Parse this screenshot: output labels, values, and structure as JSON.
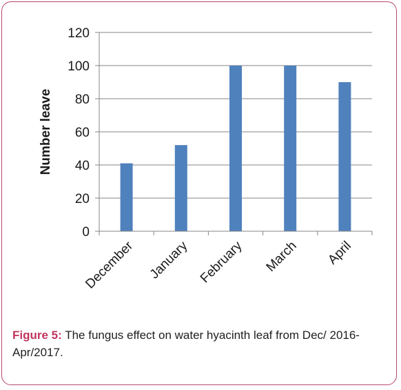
{
  "chart_data": {
    "type": "bar",
    "categories": [
      "December",
      "January",
      "February",
      "March",
      "April"
    ],
    "values": [
      41,
      52,
      100,
      100,
      90
    ],
    "title": "",
    "xlabel": "",
    "ylabel": "Number leave",
    "ylim": [
      0,
      120
    ],
    "yticks": [
      0,
      20,
      40,
      60,
      80,
      100,
      120
    ],
    "grid": true,
    "legend": "none",
    "bar_color": "#4f81bd",
    "grid_color": "#868686"
  },
  "caption": {
    "label": "Figure 5:",
    "text": " The fungus effect on water hyacinth leaf from Dec/ 2016-Apr/2017."
  },
  "colors": {
    "frame_border": "#b5476b",
    "caption_label": "#c0355f"
  }
}
